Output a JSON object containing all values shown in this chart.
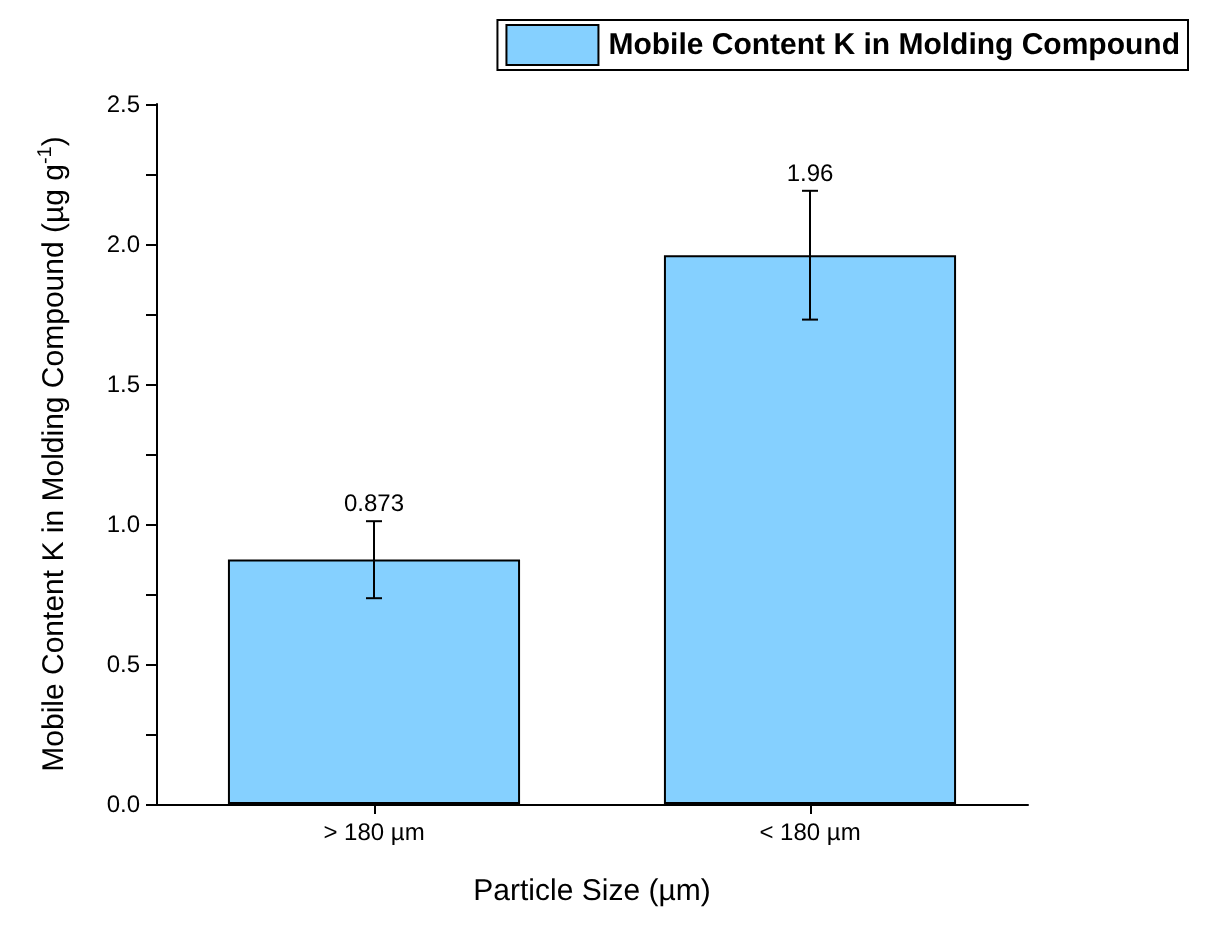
{
  "chart_data": {
    "type": "bar",
    "xlabel": "Particle Size (µm)",
    "ylabel": "Mobile Content K in Molding Compound (µg g$^{-1}$)",
    "categories": [
      "> 180 µm",
      "< 180 µm"
    ],
    "series": [
      {
        "name": "Mobile Content K in Molding Compound",
        "color": "#85d0ff",
        "values": [
          0.873,
          1.96
        ],
        "errors": [
          [
            0.735,
            1.01
          ],
          [
            1.73,
            2.19
          ]
        ]
      }
    ],
    "ylim": [
      0,
      2.5
    ],
    "yticks": [
      {
        "value": 0,
        "label": "0.0"
      },
      {
        "value": 0.25,
        "label": null
      },
      {
        "value": 0.5,
        "label": "0.5"
      },
      {
        "value": 0.75,
        "label": null
      },
      {
        "value": 1,
        "label": "1.0"
      },
      {
        "value": 1.25,
        "label": null
      },
      {
        "value": 1.5,
        "label": "1.5"
      },
      {
        "value": 1.75,
        "label": null
      },
      {
        "value": 2,
        "label": "2.0"
      },
      {
        "value": 2.25,
        "label": null
      },
      {
        "value": 2.5,
        "label": "2.5"
      }
    ],
    "data_labels": true,
    "grid": false,
    "legend": "top right"
  }
}
